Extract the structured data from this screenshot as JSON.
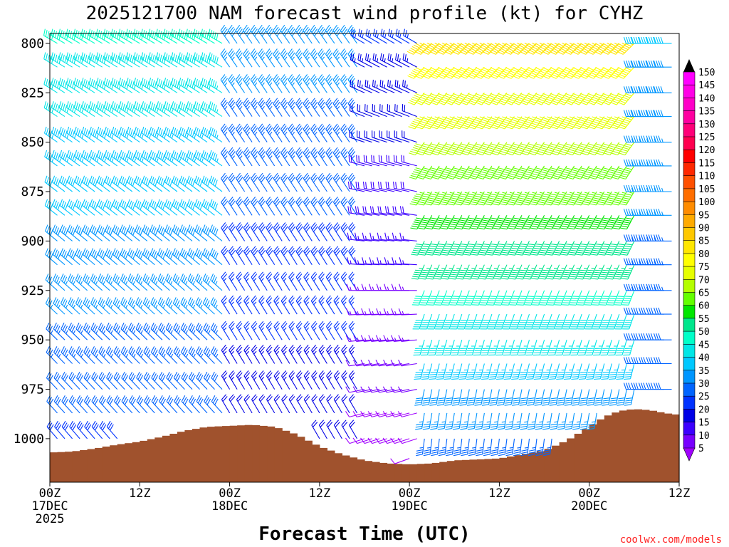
{
  "chart_data": {
    "type": "wind_barb_profile",
    "title": "2025121700 NAM forecast wind profile (kt) for CYHZ",
    "xlabel": "Forecast Time (UTC)",
    "credit": "coolwx.com/models",
    "x_hours": [
      0,
      84
    ],
    "x_ticks": [
      {
        "hour": 0,
        "lines": [
          "00Z",
          "17DEC",
          "2025"
        ]
      },
      {
        "hour": 12,
        "lines": [
          "12Z"
        ]
      },
      {
        "hour": 24,
        "lines": [
          "00Z",
          "18DEC"
        ]
      },
      {
        "hour": 36,
        "lines": [
          "12Z"
        ]
      },
      {
        "hour": 48,
        "lines": [
          "00Z",
          "19DEC"
        ]
      },
      {
        "hour": 60,
        "lines": [
          "12Z"
        ]
      },
      {
        "hour": 72,
        "lines": [
          "00Z",
          "20DEC"
        ]
      },
      {
        "hour": 84,
        "lines": [
          "12Z"
        ]
      }
    ],
    "y_range_hpa": [
      795,
      1022
    ],
    "y_ticks": [
      800,
      825,
      850,
      875,
      900,
      925,
      950,
      975,
      1000
    ],
    "pressure_levels": [
      800,
      812,
      825,
      837,
      850,
      862,
      875,
      887,
      900,
      912,
      925,
      937,
      950,
      962,
      975,
      987,
      1000,
      1010
    ],
    "surface_pressure": [
      {
        "hour": 0,
        "p": 1007
      },
      {
        "hour": 3,
        "p": 1006.5
      },
      {
        "hour": 6,
        "p": 1005
      },
      {
        "hour": 9,
        "p": 1003
      },
      {
        "hour": 12,
        "p": 1001.5
      },
      {
        "hour": 15,
        "p": 999
      },
      {
        "hour": 18,
        "p": 996
      },
      {
        "hour": 21,
        "p": 994
      },
      {
        "hour": 24,
        "p": 993.5
      },
      {
        "hour": 27,
        "p": 993
      },
      {
        "hour": 30,
        "p": 994
      },
      {
        "hour": 33,
        "p": 998
      },
      {
        "hour": 36,
        "p": 1004
      },
      {
        "hour": 39,
        "p": 1008
      },
      {
        "hour": 42,
        "p": 1011
      },
      {
        "hour": 45,
        "p": 1012.5
      },
      {
        "hour": 48,
        "p": 1013
      },
      {
        "hour": 51,
        "p": 1012.5
      },
      {
        "hour": 54,
        "p": 1011
      },
      {
        "hour": 57,
        "p": 1010.5
      },
      {
        "hour": 60,
        "p": 1010
      },
      {
        "hour": 63,
        "p": 1008
      },
      {
        "hour": 66,
        "p": 1006
      },
      {
        "hour": 69,
        "p": 1001
      },
      {
        "hour": 72,
        "p": 994
      },
      {
        "hour": 74,
        "p": 989
      },
      {
        "hour": 76,
        "p": 986
      },
      {
        "hour": 78,
        "p": 985
      },
      {
        "hour": 80,
        "p": 985.5
      },
      {
        "hour": 82,
        "p": 987
      },
      {
        "hour": 84,
        "p": 988
      }
    ],
    "wind_regimes": [
      {
        "hours": [
          0,
          24
        ],
        "dir_upper_deg": 300,
        "dir_lower_deg": 320,
        "speed_upper_kt": 50,
        "speed_lower_kt": 28
      },
      {
        "hours": [
          24,
          42
        ],
        "dir_upper_deg": 325,
        "dir_lower_deg": 330,
        "speed_upper_kt": 38,
        "speed_lower_kt": 20
      },
      {
        "hours": [
          42,
          50
        ],
        "dir_upper_deg": 300,
        "dir_lower_deg": 250,
        "speed_upper_kt": 25,
        "speed_lower_kt": 8
      },
      {
        "hours": [
          50,
          79
        ],
        "dir_upper_deg": 225,
        "dir_lower_deg": 185,
        "speed_upper_kt": 85,
        "speed_lower_kt": 30
      },
      {
        "hours": [
          79,
          84
        ],
        "dir_upper_deg": 270,
        "dir_lower_deg": 270,
        "speed_upper_kt": 40,
        "speed_lower_kt": 28
      }
    ],
    "colorbar": {
      "unit": "kt",
      "levels": [
        5,
        10,
        15,
        20,
        25,
        30,
        35,
        40,
        45,
        50,
        55,
        60,
        65,
        70,
        75,
        80,
        85,
        90,
        95,
        100,
        105,
        110,
        115,
        120,
        125,
        130,
        135,
        140,
        145,
        150
      ],
      "colors": [
        "#a000ff",
        "#7800ff",
        "#3c00ff",
        "#0000e6",
        "#0032ff",
        "#0064ff",
        "#0096ff",
        "#00c8ff",
        "#00e6e6",
        "#00ffc8",
        "#00e68c",
        "#00e600",
        "#64ff00",
        "#b4ff00",
        "#e6ff00",
        "#ffff00",
        "#ffe600",
        "#ffc800",
        "#ffaa00",
        "#ff8c00",
        "#ff6e00",
        "#ff5000",
        "#ff2800",
        "#ff0000",
        "#ff0050",
        "#ff0078",
        "#ff00a0",
        "#ff00c8",
        "#ff00e6",
        "#ff00ff"
      ]
    },
    "colors": {
      "terrain": "#a0522d",
      "axis": "#000000"
    }
  }
}
